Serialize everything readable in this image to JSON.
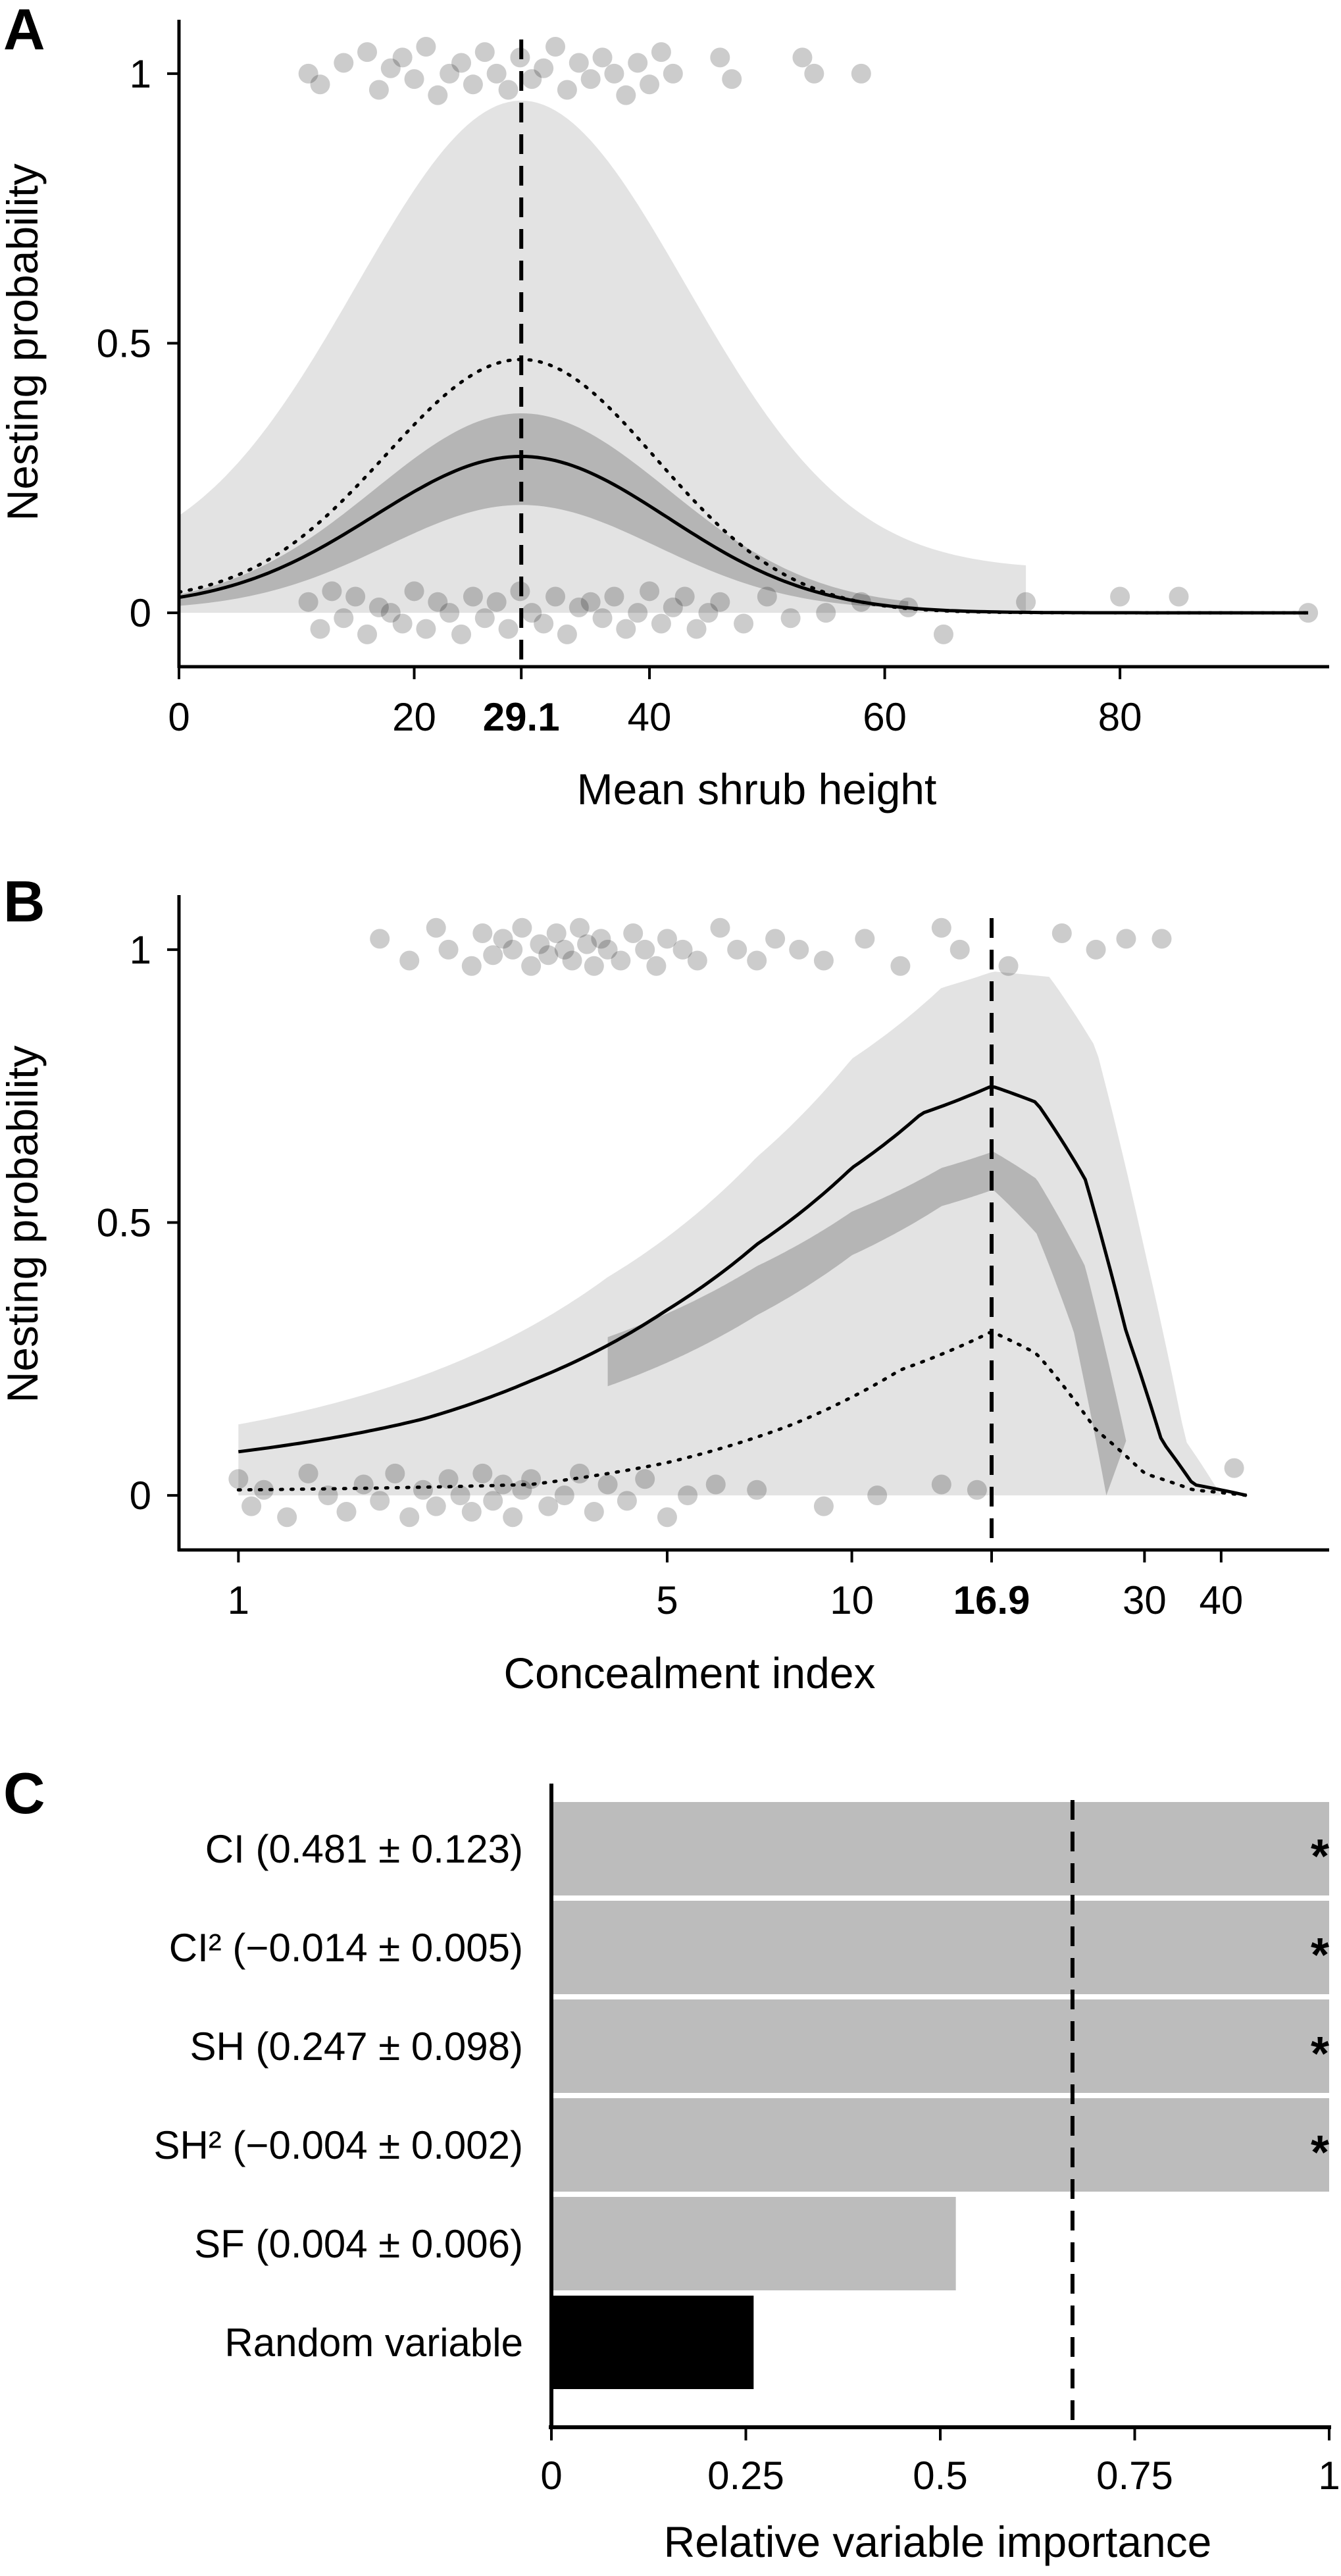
{
  "chart_data": [
    {
      "panel": "A",
      "type": "line",
      "xlabel": "Mean shrub height",
      "ylabel": "Nesting probability",
      "xlim": [
        0,
        97
      ],
      "ylim": [
        -0.1,
        1.1
      ],
      "xticks": [
        "0",
        "20",
        "40",
        "60",
        "80"
      ],
      "xtick_values": [
        0,
        20,
        40,
        60,
        80
      ],
      "yticks": [
        "0",
        "0.5",
        "1"
      ],
      "ytick_values": [
        0,
        0.5,
        1
      ],
      "optimum_label": "29.1",
      "optimum": 29.1,
      "curve": {
        "peak": 0.29,
        "min": 0.01,
        "shape": "gaussian",
        "width": 12.5
      },
      "dotted_curve": {
        "peak": 0.47,
        "min": 0.02,
        "width": 11.5
      },
      "ci_outer": {
        "peak": 0.95,
        "base": 0.08,
        "width": 14
      },
      "ci_inner": {
        "peak_upper": 0.37,
        "peak_lower": 0.2,
        "width": 12.5
      },
      "points_nest": [
        [
          11,
          1.0
        ],
        [
          12,
          0.98
        ],
        [
          14,
          1.02
        ],
        [
          16,
          1.04
        ],
        [
          17,
          0.97
        ],
        [
          18,
          1.01
        ],
        [
          19,
          1.03
        ],
        [
          20,
          0.99
        ],
        [
          21,
          1.05
        ],
        [
          22,
          0.96
        ],
        [
          23,
          1.0
        ],
        [
          24,
          1.02
        ],
        [
          25,
          0.98
        ],
        [
          26,
          1.04
        ],
        [
          27,
          1.0
        ],
        [
          28,
          0.97
        ],
        [
          29,
          1.03
        ],
        [
          30,
          0.99
        ],
        [
          31,
          1.01
        ],
        [
          32,
          1.05
        ],
        [
          33,
          0.97
        ],
        [
          34,
          1.02
        ],
        [
          35,
          0.99
        ],
        [
          36,
          1.03
        ],
        [
          37,
          1.0
        ],
        [
          38,
          0.96
        ],
        [
          39,
          1.02
        ],
        [
          40,
          0.98
        ],
        [
          41,
          1.04
        ],
        [
          42,
          1.0
        ],
        [
          46,
          1.03
        ],
        [
          47,
          0.99
        ],
        [
          53,
          1.03
        ],
        [
          54,
          1.0
        ],
        [
          58,
          1.0
        ]
      ],
      "points_nonest": [
        [
          11,
          0.02
        ],
        [
          12,
          -0.03
        ],
        [
          13,
          0.04
        ],
        [
          14,
          -0.01
        ],
        [
          15,
          0.03
        ],
        [
          16,
          -0.04
        ],
        [
          17,
          0.01
        ],
        [
          18,
          0.0
        ],
        [
          19,
          -0.02
        ],
        [
          20,
          0.04
        ],
        [
          21,
          -0.03
        ],
        [
          22,
          0.02
        ],
        [
          23,
          0.0
        ],
        [
          24,
          -0.04
        ],
        [
          25,
          0.03
        ],
        [
          26,
          -0.01
        ],
        [
          27,
          0.02
        ],
        [
          28,
          -0.03
        ],
        [
          29,
          0.04
        ],
        [
          30,
          0.0
        ],
        [
          31,
          -0.02
        ],
        [
          32,
          0.03
        ],
        [
          33,
          -0.04
        ],
        [
          34,
          0.01
        ],
        [
          35,
          0.02
        ],
        [
          36,
          -0.01
        ],
        [
          37,
          0.03
        ],
        [
          38,
          -0.03
        ],
        [
          39,
          0.0
        ],
        [
          40,
          0.04
        ],
        [
          41,
          -0.02
        ],
        [
          42,
          0.01
        ],
        [
          43,
          0.03
        ],
        [
          44,
          -0.03
        ],
        [
          45,
          0.0
        ],
        [
          46,
          0.02
        ],
        [
          48,
          -0.02
        ],
        [
          50,
          0.03
        ],
        [
          52,
          -0.01
        ],
        [
          55,
          0.0
        ],
        [
          58,
          0.02
        ],
        [
          62,
          0.01
        ],
        [
          65,
          -0.04
        ],
        [
          72,
          0.02
        ],
        [
          80,
          0.03
        ],
        [
          85,
          0.03
        ],
        [
          96,
          0.0
        ]
      ]
    },
    {
      "panel": "B",
      "type": "line",
      "xlabel": "Concealment index",
      "ylabel": "Nesting probability",
      "xscale": "log",
      "xlim": [
        0.8,
        60
      ],
      "ylim": [
        -0.1,
        1.1
      ],
      "xticks": [
        "1",
        "5",
        "10",
        "30",
        "40"
      ],
      "xtick_values": [
        1,
        5,
        10,
        30,
        40
      ],
      "yticks": [
        "0",
        "0.5",
        "1"
      ],
      "ytick_values": [
        0,
        0.5,
        1
      ],
      "optimum_label": "16.9",
      "optimum": 16.9,
      "curve": [
        [
          1,
          0.08
        ],
        [
          2,
          0.14
        ],
        [
          3,
          0.21
        ],
        [
          5,
          0.34
        ],
        [
          7,
          0.46
        ],
        [
          10,
          0.6
        ],
        [
          13,
          0.7
        ],
        [
          16.9,
          0.75
        ],
        [
          20,
          0.72
        ],
        [
          24,
          0.58
        ],
        [
          28,
          0.3
        ],
        [
          32,
          0.1
        ],
        [
          36,
          0.02
        ],
        [
          44,
          0.0
        ]
      ],
      "dotted_curve": [
        [
          1,
          0.01
        ],
        [
          3,
          0.02
        ],
        [
          5,
          0.06
        ],
        [
          8,
          0.13
        ],
        [
          12,
          0.23
        ],
        [
          16.9,
          0.3
        ],
        [
          20,
          0.26
        ],
        [
          25,
          0.12
        ],
        [
          30,
          0.04
        ],
        [
          36,
          0.01
        ],
        [
          44,
          0.0
        ]
      ],
      "ci_outer_upper": [
        [
          1,
          0.13
        ],
        [
          2,
          0.22
        ],
        [
          4,
          0.4
        ],
        [
          7,
          0.62
        ],
        [
          10,
          0.8
        ],
        [
          14,
          0.93
        ],
        [
          17,
          0.96
        ],
        [
          21,
          0.95
        ],
        [
          25,
          0.82
        ],
        [
          30,
          0.45
        ],
        [
          35,
          0.1
        ],
        [
          40,
          0.0
        ]
      ],
      "ci_outer_lower": [
        [
          1,
          0.0
        ],
        [
          40,
          0.0
        ]
      ],
      "ci_inner_upper": [
        [
          4,
          0.29
        ],
        [
          7,
          0.42
        ],
        [
          10,
          0.52
        ],
        [
          14,
          0.6
        ],
        [
          17,
          0.63
        ],
        [
          20,
          0.58
        ],
        [
          24,
          0.42
        ],
        [
          28,
          0.1
        ]
      ],
      "ci_inner_lower": [
        [
          4,
          0.2
        ],
        [
          7,
          0.33
        ],
        [
          10,
          0.44
        ],
        [
          14,
          0.53
        ],
        [
          17,
          0.56
        ],
        [
          20,
          0.48
        ],
        [
          23,
          0.3
        ],
        [
          26,
          0.0
        ]
      ],
      "points_nest": [
        [
          1.7,
          1.02
        ],
        [
          1.9,
          0.98
        ],
        [
          2.1,
          1.04
        ],
        [
          2.2,
          1.0
        ],
        [
          2.4,
          0.97
        ],
        [
          2.5,
          1.03
        ],
        [
          2.6,
          0.99
        ],
        [
          2.7,
          1.02
        ],
        [
          2.8,
          1.0
        ],
        [
          2.9,
          1.04
        ],
        [
          3.0,
          0.97
        ],
        [
          3.1,
          1.01
        ],
        [
          3.2,
          0.99
        ],
        [
          3.3,
          1.03
        ],
        [
          3.4,
          1.0
        ],
        [
          3.5,
          0.98
        ],
        [
          3.6,
          1.04
        ],
        [
          3.7,
          1.01
        ],
        [
          3.8,
          0.97
        ],
        [
          3.9,
          1.02
        ],
        [
          4.0,
          1.0
        ],
        [
          4.2,
          0.98
        ],
        [
          4.4,
          1.03
        ],
        [
          4.6,
          1.0
        ],
        [
          4.8,
          0.97
        ],
        [
          5.0,
          1.02
        ],
        [
          5.3,
          1.0
        ],
        [
          5.6,
          0.98
        ],
        [
          6.1,
          1.04
        ],
        [
          6.5,
          1.0
        ],
        [
          7.0,
          0.98
        ],
        [
          7.5,
          1.02
        ],
        [
          8.2,
          1.0
        ],
        [
          9.0,
          0.98
        ],
        [
          10.5,
          1.02
        ],
        [
          12,
          0.97
        ],
        [
          14,
          1.04
        ],
        [
          15,
          1.0
        ],
        [
          18,
          0.97
        ],
        [
          22,
          1.03
        ],
        [
          25,
          1.0
        ],
        [
          28,
          1.02
        ],
        [
          32,
          1.02
        ]
      ],
      "points_nonest": [
        [
          1.0,
          0.03
        ],
        [
          1.05,
          -0.02
        ],
        [
          1.1,
          0.01
        ],
        [
          1.2,
          -0.04
        ],
        [
          1.3,
          0.04
        ],
        [
          1.4,
          0.0
        ],
        [
          1.5,
          -0.03
        ],
        [
          1.6,
          0.02
        ],
        [
          1.7,
          -0.01
        ],
        [
          1.8,
          0.04
        ],
        [
          1.9,
          -0.04
        ],
        [
          2.0,
          0.01
        ],
        [
          2.1,
          -0.02
        ],
        [
          2.2,
          0.03
        ],
        [
          2.3,
          0.0
        ],
        [
          2.4,
          -0.03
        ],
        [
          2.5,
          0.04
        ],
        [
          2.6,
          -0.01
        ],
        [
          2.7,
          0.02
        ],
        [
          2.8,
          -0.04
        ],
        [
          2.9,
          0.01
        ],
        [
          3.0,
          0.03
        ],
        [
          3.2,
          -0.02
        ],
        [
          3.4,
          0.0
        ],
        [
          3.6,
          0.04
        ],
        [
          3.8,
          -0.03
        ],
        [
          4.0,
          0.02
        ],
        [
          4.3,
          -0.01
        ],
        [
          4.6,
          0.03
        ],
        [
          5.0,
          -0.04
        ],
        [
          5.4,
          0.0
        ],
        [
          6.0,
          0.02
        ],
        [
          7.0,
          0.01
        ],
        [
          9.0,
          -0.02
        ],
        [
          11,
          0.0
        ],
        [
          14,
          0.02
        ],
        [
          16,
          0.01
        ],
        [
          42,
          0.05
        ]
      ]
    },
    {
      "panel": "C",
      "type": "bar",
      "orientation": "horizontal",
      "xlabel": "Relative variable importance",
      "xlim": [
        0,
        1
      ],
      "xticks": [
        "0",
        "0.25",
        "0.5",
        "0.75",
        "1"
      ],
      "xtick_values": [
        0,
        0.25,
        0.5,
        0.75,
        1
      ],
      "threshold": 0.67,
      "colors": {
        "bar": "#bcbcbc",
        "random": "#000000"
      },
      "categories": [
        {
          "label": "CI (0.481 ± 0.123)",
          "value": 1.0,
          "star": "*",
          "random": false
        },
        {
          "label": "CI² (−0.014 ± 0.005)",
          "value": 1.0,
          "star": "*",
          "random": false
        },
        {
          "label": "SH (0.247 ± 0.098)",
          "value": 1.0,
          "star": "*",
          "random": false
        },
        {
          "label": "SH² (−0.004 ± 0.002)",
          "value": 1.0,
          "star": "*",
          "random": false
        },
        {
          "label": "SF (0.004 ± 0.006)",
          "value": 0.52,
          "star": "",
          "random": false
        },
        {
          "label": "Random variable",
          "value": 0.26,
          "star": "",
          "random": true
        }
      ]
    }
  ],
  "panel_labels": [
    "A",
    "B",
    "C"
  ]
}
